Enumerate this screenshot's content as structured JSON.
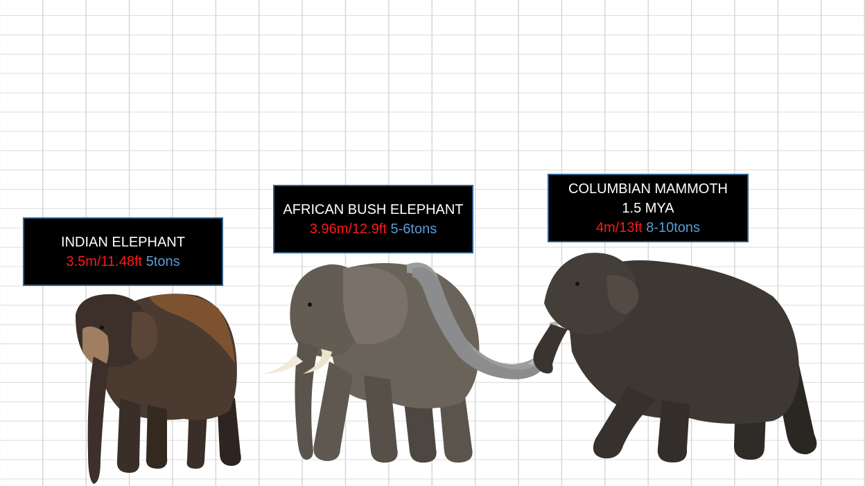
{
  "colors": {
    "box_background": "#000000",
    "box_border": "#2f5d8a",
    "title_text": "#ffffff",
    "height_text": "#ff1a1a",
    "weight_text": "#5b9bd5",
    "grid": "#d7d7d7"
  },
  "animals": [
    {
      "name": "INDIAN ELEPHANT",
      "era": "",
      "height": "3.5m/11.48ft",
      "weight": "5tons",
      "illustration": "indian-elephant"
    },
    {
      "name": "AFRICAN BUSH ELEPHANT",
      "era": "",
      "height": "3.96m/12.9ft",
      "weight": "5-6tons",
      "illustration": "african-bush-elephant"
    },
    {
      "name": "COLUMBIAN MAMMOTH",
      "era": "1.5 MYA",
      "height": "4m/13ft",
      "weight": "8-10tons",
      "illustration": "columbian-mammoth"
    }
  ]
}
